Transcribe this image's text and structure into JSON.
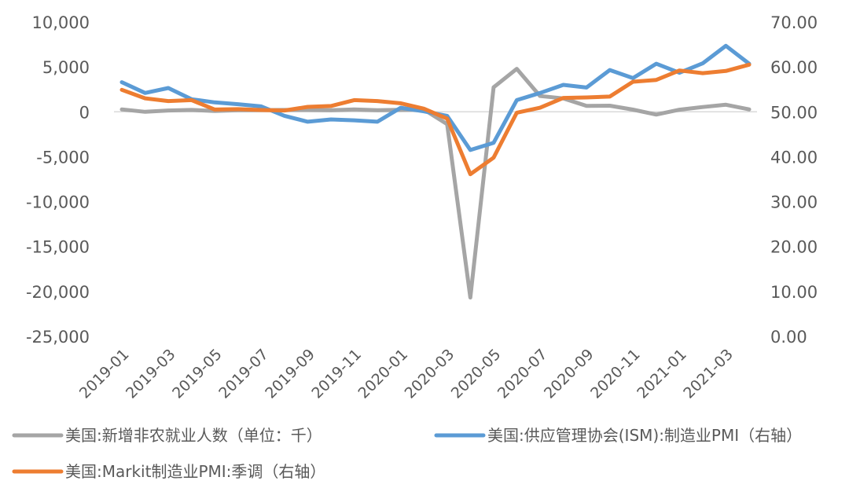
{
  "chart_data": {
    "type": "line",
    "x": [
      "2019-01",
      "2019-02",
      "2019-03",
      "2019-04",
      "2019-05",
      "2019-06",
      "2019-07",
      "2019-08",
      "2019-09",
      "2019-10",
      "2019-11",
      "2019-12",
      "2020-01",
      "2020-02",
      "2020-03",
      "2020-04",
      "2020-05",
      "2020-06",
      "2020-07",
      "2020-08",
      "2020-09",
      "2020-10",
      "2020-11",
      "2020-12",
      "2021-01",
      "2021-02",
      "2021-03",
      "2021-04"
    ],
    "x_tick_labels": [
      "2019-01",
      "2019-03",
      "2019-05",
      "2019-07",
      "2019-09",
      "2019-11",
      "2020-01",
      "2020-03",
      "2020-05",
      "2020-07",
      "2020-09",
      "2020-11",
      "2021-01",
      "2021-03"
    ],
    "y_left": {
      "min": -25000,
      "max": 10000,
      "step": 5000,
      "tick_labels": [
        "10,000",
        "5,000",
        "0",
        "-5,000",
        "-10,000",
        "-15,000",
        "-20,000",
        "-25,000"
      ]
    },
    "y_right": {
      "min": 0,
      "max": 70,
      "step": 10,
      "tick_labels": [
        "70.00",
        "60.00",
        "50.00",
        "40.00",
        "30.00",
        "20.00",
        "10.00",
        "0.00"
      ]
    },
    "grid": false,
    "legend_position": "bottom",
    "series": [
      {
        "name": "美国:新增非农就业人数（单位：千）",
        "axis": "left",
        "color": "#a5a5a5",
        "values": [
          268,
          1,
          147,
          210,
          85,
          182,
          194,
          207,
          208,
          185,
          261,
          184,
          214,
          251,
          -1373,
          -20679,
          2725,
          4781,
          1761,
          1493,
          661,
          680,
          245,
          -306,
          233,
          536,
          785,
          266
        ]
      },
      {
        "name": "美国:供应管理协会(ISM):制造业PMI（右轴）",
        "axis": "right",
        "color": "#5b9bd5",
        "values": [
          56.6,
          54.2,
          55.3,
          52.8,
          52.1,
          51.7,
          51.2,
          49.1,
          47.8,
          48.3,
          48.1,
          47.8,
          50.9,
          50.1,
          49.1,
          41.5,
          43.1,
          52.6,
          54.2,
          56.0,
          55.4,
          59.3,
          57.5,
          60.7,
          58.7,
          60.8,
          64.7,
          60.7
        ]
      },
      {
        "name": "美国:Markit制造业PMI:季调（右轴）",
        "axis": "right",
        "color": "#ed7d31",
        "values": [
          54.9,
          53.0,
          52.4,
          52.6,
          50.5,
          50.6,
          50.4,
          50.3,
          51.1,
          51.3,
          52.6,
          52.4,
          51.9,
          50.7,
          48.5,
          36.1,
          39.8,
          49.8,
          50.9,
          53.1,
          53.2,
          53.4,
          56.7,
          57.1,
          59.2,
          58.6,
          59.1,
          60.5
        ]
      }
    ]
  }
}
